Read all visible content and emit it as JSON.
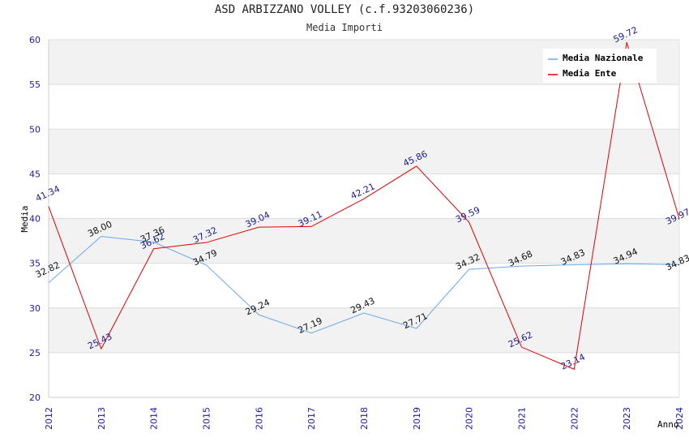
{
  "chart_data": {
    "type": "line",
    "title": "ASD ARBIZZANO VOLLEY (c.f.93203060236)",
    "subtitle": "Media Importi",
    "xlabel": "Anno",
    "ylabel": "Media",
    "ylim": [
      20,
      60
    ],
    "yticks": [
      20,
      25,
      30,
      35,
      40,
      45,
      50,
      55,
      60
    ],
    "categories": [
      "2012",
      "2013",
      "2014",
      "2015",
      "2016",
      "2017",
      "2018",
      "2019",
      "2020",
      "2021",
      "2022",
      "2023",
      "2024"
    ],
    "legend_position": "top-right",
    "series": [
      {
        "name": "Media Nazionale",
        "color": "#6aa9e9",
        "label_color": "#111111",
        "values": [
          32.82,
          38.0,
          37.36,
          34.79,
          29.24,
          27.19,
          29.43,
          27.71,
          34.32,
          34.68,
          34.83,
          34.94,
          34.83
        ],
        "labels": [
          "32.82",
          "38.00",
          "37.36",
          "34.79",
          "29.24",
          "27.19",
          "29.43",
          "27.71",
          "34.32",
          "34.68",
          "34.83",
          "34.94",
          "34.83"
        ]
      },
      {
        "name": "Media Ente",
        "color": "#e00000",
        "label_color": "#1a1a8c",
        "values": [
          41.34,
          25.43,
          36.62,
          37.32,
          39.04,
          39.11,
          42.21,
          45.86,
          39.59,
          25.62,
          23.14,
          59.72,
          39.97
        ],
        "labels": [
          "41.34",
          "25.43",
          "36.62",
          "37.32",
          "39.04",
          "39.11",
          "42.21",
          "45.86",
          "39.59",
          "25.62",
          "23.14",
          "59.72",
          "39.97"
        ]
      }
    ]
  }
}
